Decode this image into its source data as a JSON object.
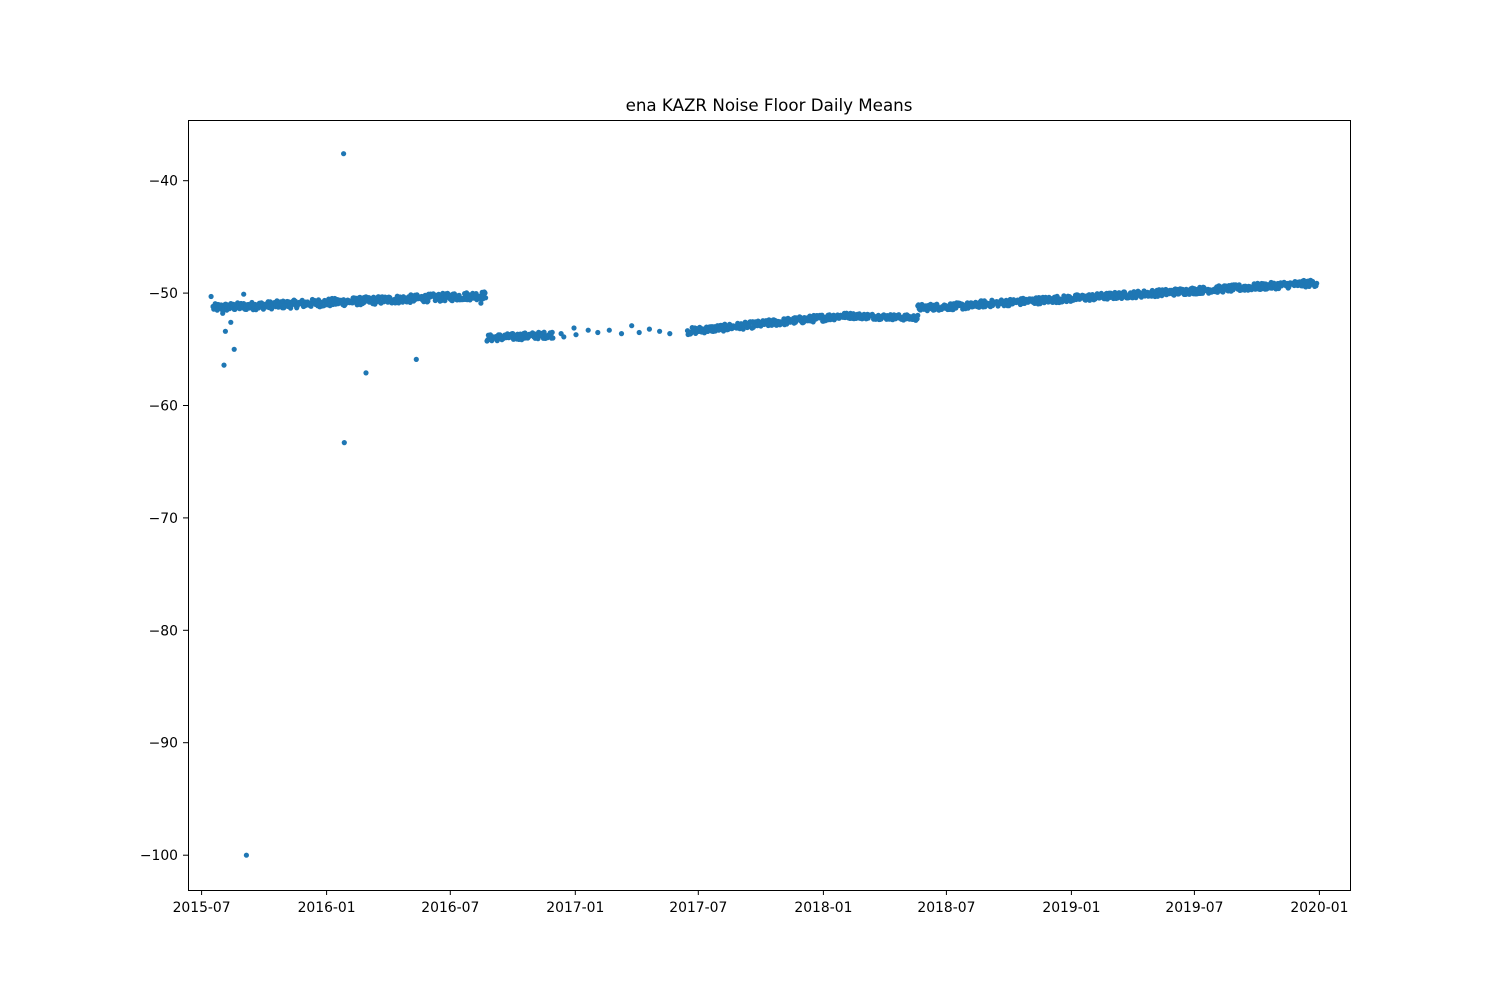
{
  "chart_data": {
    "type": "scatter",
    "title": "ena KAZR Noise Floor Daily Means",
    "xlabel": "",
    "ylabel": "",
    "x_type": "date",
    "xlim": [
      "2015-06-11",
      "2020-02-15"
    ],
    "ylim": [
      -103.1,
      -34.6
    ],
    "x_ticks": [
      "2015-07",
      "2016-01",
      "2016-07",
      "2017-01",
      "2017-07",
      "2018-01",
      "2018-07",
      "2019-01",
      "2019-07",
      "2020-01"
    ],
    "y_ticks": [
      -40,
      -50,
      -60,
      -70,
      -80,
      -90,
      -100
    ],
    "y_tick_labels": [
      "−40",
      "−50",
      "−60",
      "−70",
      "−80",
      "−90",
      "−100"
    ],
    "grid": false,
    "legend": "none",
    "marker_color": "#1f77b4",
    "segments": [
      {
        "start": "2015-07-18",
        "end": "2016-08-22",
        "y_start": -51.3,
        "y_end": -50.2,
        "spread": 0.35,
        "every_days": 1
      },
      {
        "start": "2016-08-24",
        "end": "2016-11-29",
        "y_start": -54.0,
        "y_end": -53.7,
        "spread": 0.3,
        "every_days": 1
      },
      {
        "start": "2017-06-15",
        "end": "2018-02-01",
        "y_start": -53.4,
        "y_end": -52.0,
        "spread": 0.3,
        "every_days": 1
      },
      {
        "start": "2018-02-01",
        "end": "2018-05-20",
        "y_start": -52.0,
        "y_end": -52.2,
        "spread": 0.25,
        "every_days": 1
      },
      {
        "start": "2018-05-20",
        "end": "2018-08-15",
        "y_start": -51.3,
        "y_end": -51.1,
        "spread": 0.3,
        "every_days": 1
      },
      {
        "start": "2018-08-15",
        "end": "2019-12-28",
        "y_start": -51.0,
        "y_end": -49.1,
        "spread": 0.3,
        "every_days": 1
      }
    ],
    "points": [
      {
        "x": "2015-07-15",
        "y": -50.3
      },
      {
        "x": "2015-07-18",
        "y": -51.2
      },
      {
        "x": "2015-08-01",
        "y": -51.8
      },
      {
        "x": "2015-08-03",
        "y": -56.4
      },
      {
        "x": "2015-08-05",
        "y": -53.4
      },
      {
        "x": "2015-08-13",
        "y": -52.6
      },
      {
        "x": "2015-08-18",
        "y": -55.0
      },
      {
        "x": "2015-09-01",
        "y": -50.1
      },
      {
        "x": "2015-09-05",
        "y": -100.0
      },
      {
        "x": "2016-01-26",
        "y": -37.6
      },
      {
        "x": "2016-01-27",
        "y": -63.3
      },
      {
        "x": "2016-02-28",
        "y": -57.1
      },
      {
        "x": "2016-05-12",
        "y": -55.9
      },
      {
        "x": "2016-08-15",
        "y": -50.9
      },
      {
        "x": "2016-12-11",
        "y": -53.6
      },
      {
        "x": "2016-12-15",
        "y": -53.9
      },
      {
        "x": "2016-12-30",
        "y": -53.1
      },
      {
        "x": "2017-01-02",
        "y": -53.7
      },
      {
        "x": "2017-01-20",
        "y": -53.3
      },
      {
        "x": "2017-02-03",
        "y": -53.5
      },
      {
        "x": "2017-02-20",
        "y": -53.3
      },
      {
        "x": "2017-03-10",
        "y": -53.6
      },
      {
        "x": "2017-03-25",
        "y": -52.9
      },
      {
        "x": "2017-04-05",
        "y": -53.5
      },
      {
        "x": "2017-04-20",
        "y": -53.2
      },
      {
        "x": "2017-05-05",
        "y": -53.4
      },
      {
        "x": "2017-05-20",
        "y": -53.6
      }
    ]
  }
}
